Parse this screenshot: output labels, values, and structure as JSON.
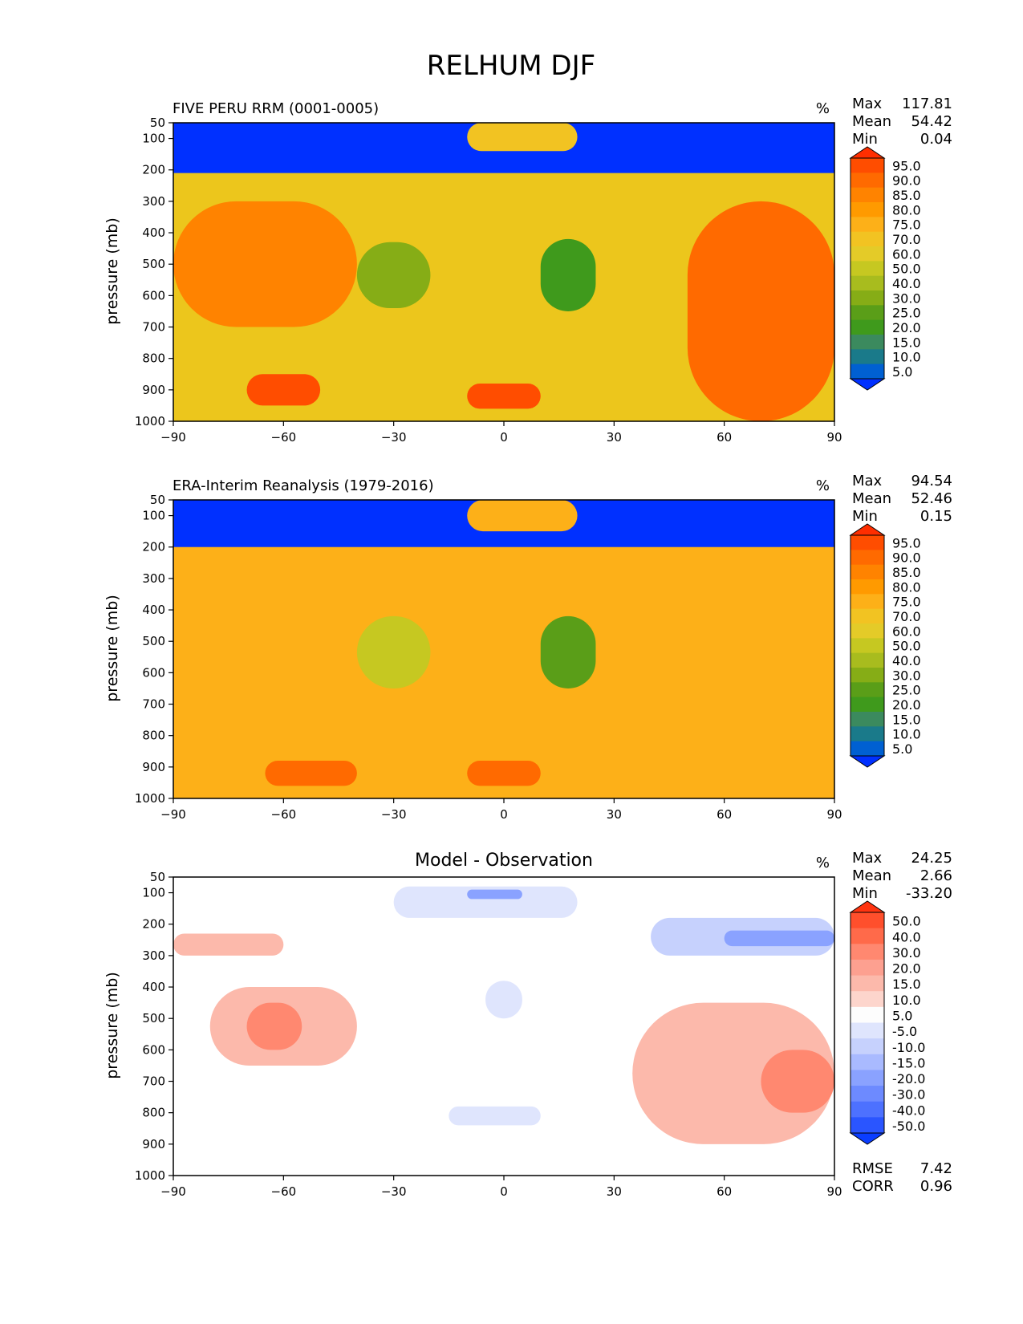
{
  "figure": {
    "title": "RELHUM DJF"
  },
  "chart_data": [
    {
      "type": "contour",
      "title": "FIVE PERU RRM (0001-0005)",
      "units": "%",
      "ylabel": "pressure (mb)",
      "xlabel": "",
      "xlim": [
        -90,
        90
      ],
      "ylim": [
        1000,
        50
      ],
      "x_ticks": [
        "−90",
        "−60",
        "−30",
        "0",
        "30",
        "60",
        "90"
      ],
      "y_ticks": [
        "50",
        "100",
        "200",
        "300",
        "400",
        "500",
        "600",
        "700",
        "800",
        "900",
        "1000"
      ],
      "stats": [
        {
          "label": "Max",
          "value": "117.81"
        },
        {
          "label": "Mean",
          "value": "54.42"
        },
        {
          "label": "Min",
          "value": "0.04"
        }
      ],
      "colorbar": {
        "levels": [
          "95.0",
          "90.0",
          "85.0",
          "80.0",
          "75.0",
          "70.0",
          "60.0",
          "50.0",
          "40.0",
          "30.0",
          "25.0",
          "20.0",
          "15.0",
          "10.0",
          "5.0"
        ],
        "colors": [
          "#ff2e00",
          "#ff4d00",
          "#ff6a00",
          "#ff8300",
          "#ff9a00",
          "#fdb018",
          "#f2c322",
          "#e4cb28",
          "#c6c821",
          "#a8bc1e",
          "#86ad16",
          "#5a9e18",
          "#3f9a1c",
          "#3b8a5e",
          "#1a7a8a",
          "#0060d2",
          "#0030ff"
        ]
      },
      "field": {
        "base": "#ecc61c",
        "regions": [
          {
            "lat": [
              -90,
              90
            ],
            "p": [
              50,
              210
            ],
            "value": 2
          },
          {
            "lat": [
              -10,
              20
            ],
            "p": [
              50,
              140
            ],
            "value": 62
          },
          {
            "lat": [
              -40,
              -20
            ],
            "p": [
              430,
              640
            ],
            "value": 28
          },
          {
            "lat": [
              10,
              25
            ],
            "p": [
              420,
              650
            ],
            "value": 18
          },
          {
            "lat": [
              -90,
              -40
            ],
            "p": [
              300,
              700
            ],
            "value": 82
          },
          {
            "lat": [
              50,
              90
            ],
            "p": [
              300,
              1000
            ],
            "value": 88
          },
          {
            "lat": [
              -70,
              -50
            ],
            "p": [
              850,
              950
            ],
            "value": 92
          },
          {
            "lat": [
              -10,
              10
            ],
            "p": [
              880,
              960
            ],
            "value": 90
          }
        ]
      }
    },
    {
      "type": "contour",
      "title": "ERA-Interim Reanalysis (1979-2016)",
      "units": "%",
      "ylabel": "pressure (mb)",
      "xlabel": "",
      "xlim": [
        -90,
        90
      ],
      "ylim": [
        1000,
        50
      ],
      "x_ticks": [
        "−90",
        "−60",
        "−30",
        "0",
        "30",
        "60",
        "90"
      ],
      "y_ticks": [
        "50",
        "100",
        "200",
        "300",
        "400",
        "500",
        "600",
        "700",
        "800",
        "900",
        "1000"
      ],
      "stats": [
        {
          "label": "Max",
          "value": "94.54"
        },
        {
          "label": "Mean",
          "value": "52.46"
        },
        {
          "label": "Min",
          "value": "0.15"
        }
      ],
      "colorbar": {
        "levels": [
          "95.0",
          "90.0",
          "85.0",
          "80.0",
          "75.0",
          "70.0",
          "60.0",
          "50.0",
          "40.0",
          "30.0",
          "25.0",
          "20.0",
          "15.0",
          "10.0",
          "5.0"
        ],
        "colors": [
          "#ff2e00",
          "#ff4d00",
          "#ff6a00",
          "#ff8300",
          "#ff9a00",
          "#fdb018",
          "#f2c322",
          "#e4cb28",
          "#c6c821",
          "#a8bc1e",
          "#86ad16",
          "#5a9e18",
          "#3f9a1c",
          "#3b8a5e",
          "#1a7a8a",
          "#0060d2",
          "#0030ff"
        ]
      },
      "field": {
        "base": "#fdb018",
        "regions": [
          {
            "lat": [
              -90,
              90
            ],
            "p": [
              50,
              200
            ],
            "value": 2
          },
          {
            "lat": [
              -10,
              20
            ],
            "p": [
              50,
              150
            ],
            "value": 70
          },
          {
            "lat": [
              -40,
              -20
            ],
            "p": [
              420,
              650
            ],
            "value": 40
          },
          {
            "lat": [
              10,
              25
            ],
            "p": [
              420,
              650
            ],
            "value": 22
          },
          {
            "lat": [
              -65,
              -40
            ],
            "p": [
              880,
              960
            ],
            "value": 88
          },
          {
            "lat": [
              -10,
              10
            ],
            "p": [
              880,
              960
            ],
            "value": 88
          }
        ]
      }
    },
    {
      "type": "contour",
      "title": "Model - Observation",
      "units": "%",
      "ylabel": "pressure (mb)",
      "xlabel": "",
      "xlim": [
        -90,
        90
      ],
      "ylim": [
        1000,
        50
      ],
      "x_ticks": [
        "−90",
        "−60",
        "−30",
        "0",
        "30",
        "60",
        "90"
      ],
      "y_ticks": [
        "50",
        "100",
        "200",
        "300",
        "400",
        "500",
        "600",
        "700",
        "800",
        "900",
        "1000"
      ],
      "stats": [
        {
          "label": "Max",
          "value": "24.25"
        },
        {
          "label": "Mean",
          "value": "2.66"
        },
        {
          "label": "Min",
          "value": "-33.20"
        }
      ],
      "extra_stats": [
        {
          "label": "RMSE",
          "value": "7.42"
        },
        {
          "label": "CORR",
          "value": "0.96"
        }
      ],
      "colorbar": {
        "levels": [
          "50.0",
          "40.0",
          "30.0",
          "20.0",
          "15.0",
          "10.0",
          "5.0",
          "-5.0",
          "-10.0",
          "-15.0",
          "-20.0",
          "-30.0",
          "-40.0",
          "-50.0"
        ],
        "colors": [
          "#ff3410",
          "#ff4f2c",
          "#ff6a4a",
          "#ff8870",
          "#fda090",
          "#fcb9ab",
          "#fdd5cc",
          "#fdfdfd",
          "#dfe5fd",
          "#c6d1fd",
          "#a9baff",
          "#8aa2ff",
          "#6d8aff",
          "#4d71ff",
          "#2a55ff",
          "#0a3dff"
        ]
      },
      "field": {
        "base": "#ffffff",
        "regions": [
          {
            "lat": [
              -30,
              20
            ],
            "p": [
              80,
              180
            ],
            "value": -10
          },
          {
            "lat": [
              -10,
              5
            ],
            "p": [
              90,
              120
            ],
            "value": -25
          },
          {
            "lat": [
              40,
              90
            ],
            "p": [
              180,
              300
            ],
            "value": -15
          },
          {
            "lat": [
              60,
              90
            ],
            "p": [
              220,
              270
            ],
            "value": -30
          },
          {
            "lat": [
              -90,
              -60
            ],
            "p": [
              230,
              300
            ],
            "value": 12
          },
          {
            "lat": [
              -80,
              -40
            ],
            "p": [
              400,
              650
            ],
            "value": 10
          },
          {
            "lat": [
              -70,
              -55
            ],
            "p": [
              450,
              600
            ],
            "value": 20
          },
          {
            "lat": [
              35,
              90
            ],
            "p": [
              450,
              900
            ],
            "value": 12
          },
          {
            "lat": [
              70,
              90
            ],
            "p": [
              600,
              800
            ],
            "value": 22
          },
          {
            "lat": [
              -5,
              5
            ],
            "p": [
              380,
              500
            ],
            "value": -6
          },
          {
            "lat": [
              -15,
              10
            ],
            "p": [
              780,
              840
            ],
            "value": -6
          }
        ]
      }
    }
  ]
}
